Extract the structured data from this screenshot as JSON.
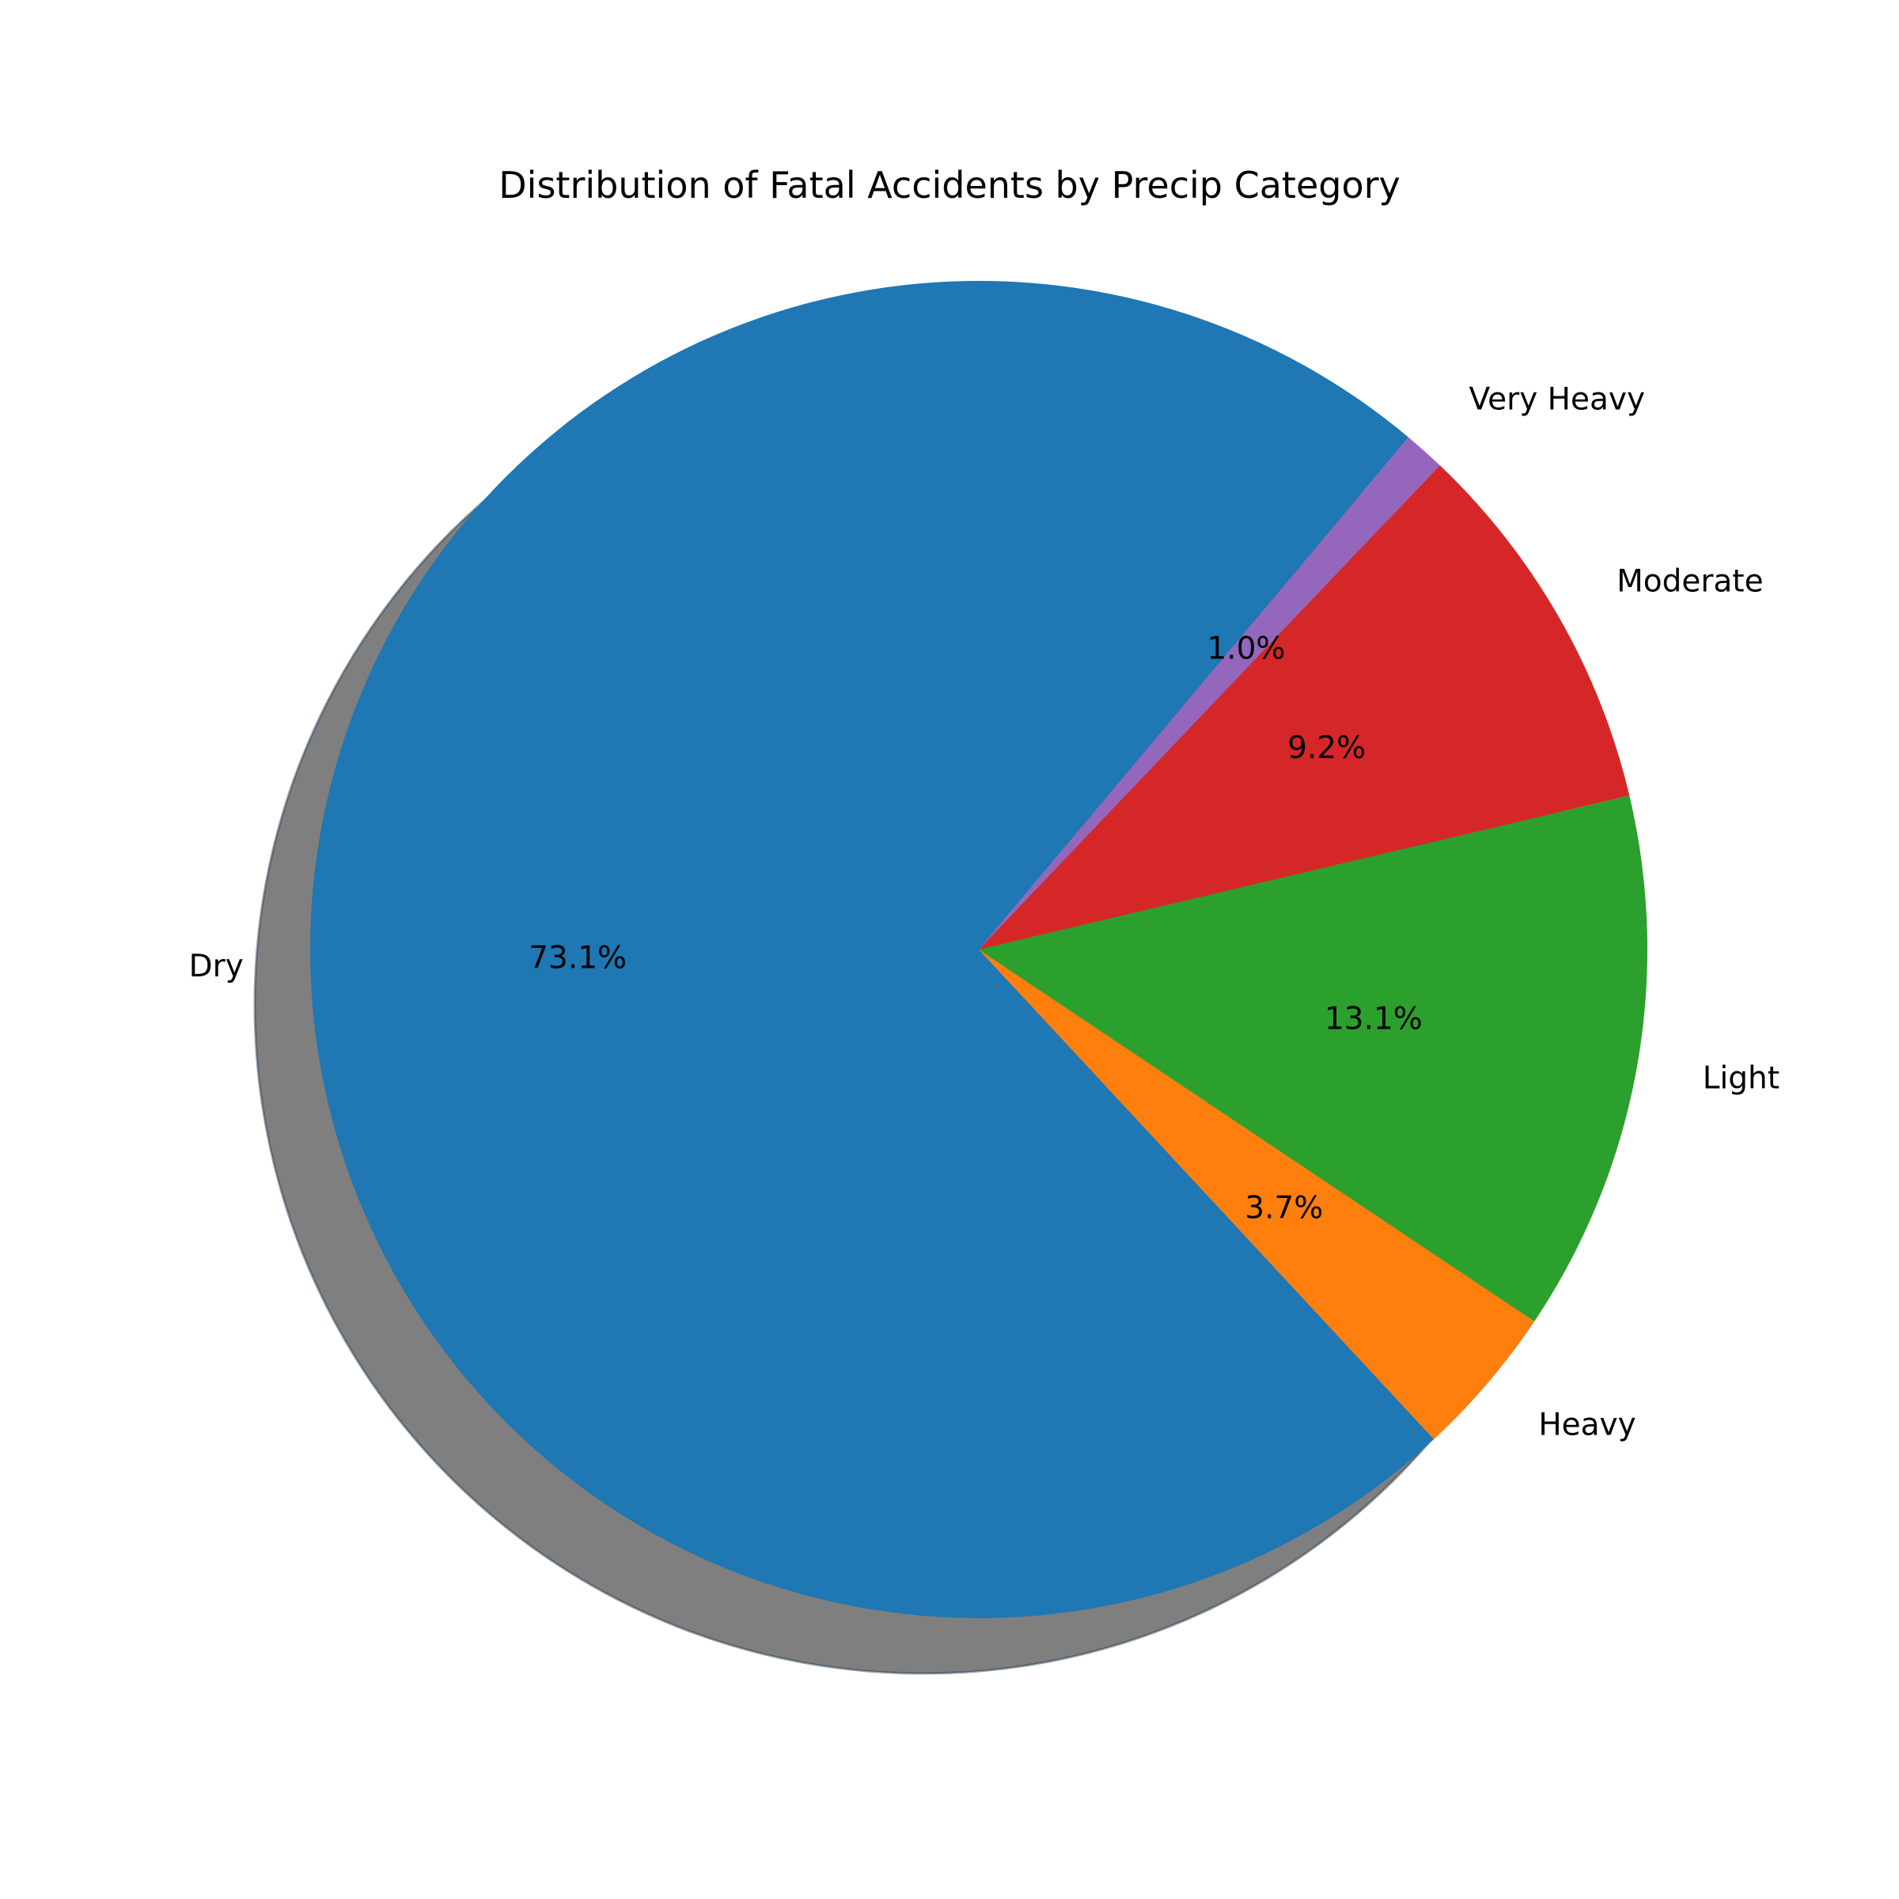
{
  "chart_data": {
    "type": "pie",
    "title": "Distribution of Fatal Accidents by Precip Category",
    "categories": [
      "Dry",
      "Heavy",
      "Light",
      "Moderate",
      "Very Heavy"
    ],
    "values": [
      73.1,
      3.7,
      13.1,
      9.2,
      1.0
    ],
    "value_labels": [
      "73.1%",
      "3.7%",
      "13.1%",
      "9.2%",
      "1.0%"
    ],
    "colors": [
      "#1f77b4",
      "#ff7f0e",
      "#2ca02c",
      "#d62728",
      "#9467bd"
    ],
    "start_angle_degrees": 50,
    "direction": "counterclockwise",
    "shadow": true,
    "legend": "none"
  }
}
